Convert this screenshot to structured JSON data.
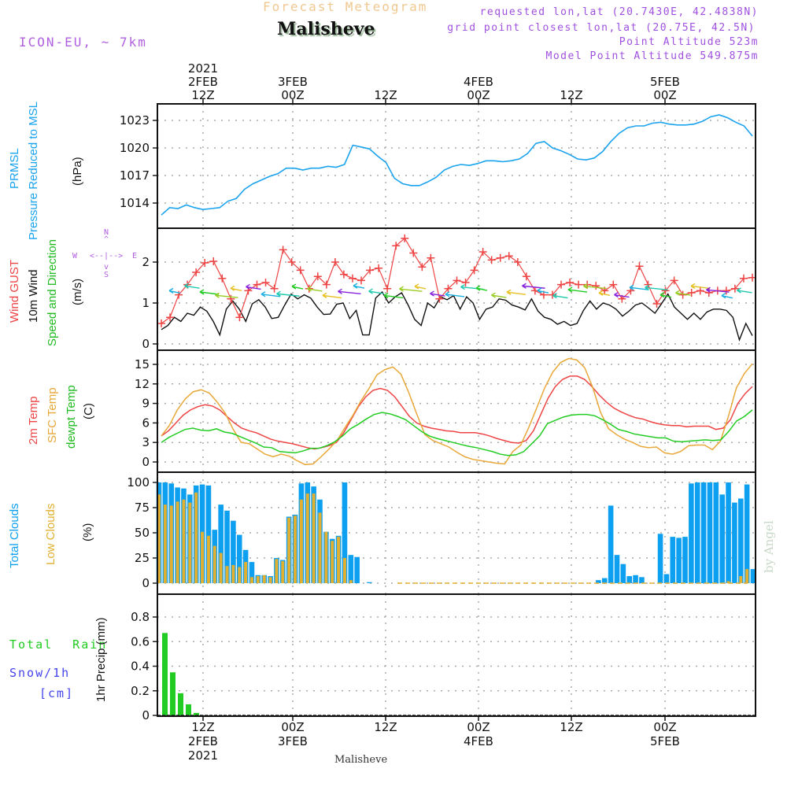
{
  "header": {
    "supertitle": "Forecast Meteogram",
    "location": "Malisheve",
    "model": "ICON-EU, ~ 7km",
    "requested_point": "requested lon,lat (20.7430E, 42.4838N)",
    "grid_point": "grid point closest lon,lat (20.75E, 42.5N)",
    "point_altitude": "Point Altitude 523m",
    "model_altitude": "Model Point Altitude 549.875m",
    "footer_location": "Malisheve",
    "watermark": "by Angel"
  },
  "colors": {
    "pressure": "#1aa3ee",
    "gust": "#ee4444",
    "wind": "#000000",
    "temp2m": "#ee4444",
    "sfc_temp": "#e8a83a",
    "dewpt": "#22cc22",
    "total_clouds": "#0ea0f0",
    "low_clouds": "#e2b030",
    "rain": "#22cc22",
    "snow": "#4444ee",
    "header_purple": "#b060e0",
    "supertitle": "#f0c890"
  },
  "compass": {
    "n": "N",
    "s": "S",
    "e": "E",
    "w": "W",
    "arrows": "<--|-->"
  },
  "chart_data": [
    {
      "type": "line",
      "id": "pressure",
      "title": "PRMSL Pressure Reduced to MSL",
      "title_lines": [
        "PRMSL",
        "Pressure Reduced to MSL"
      ],
      "ylabel": "(hPa)",
      "yticks": [
        1014,
        1017,
        1020,
        1023
      ],
      "ylim": [
        1011.2,
        1024.8
      ],
      "x_hours_start": 0,
      "series": [
        {
          "name": "PRMSL",
          "values": [
            1012.7,
            1013.5,
            1013.4,
            1013.8,
            1013.5,
            1013.3,
            1013.4,
            1013.5,
            1014.2,
            1014.5,
            1015.5,
            1016.1,
            1016.5,
            1016.9,
            1017.2,
            1017.8,
            1017.8,
            1017.6,
            1017.8,
            1017.8,
            1018.0,
            1017.9,
            1018.2,
            1020.3,
            1020.1,
            1019.9,
            1019.1,
            1018.4,
            1016.7,
            1016.1,
            1015.9,
            1015.9,
            1016.3,
            1016.8,
            1017.6,
            1018.0,
            1018.2,
            1018.1,
            1018.3,
            1018.6,
            1018.6,
            1018.5,
            1018.6,
            1018.8,
            1019.4,
            1020.5,
            1020.7,
            1020.0,
            1019.7,
            1019.3,
            1018.8,
            1018.7,
            1018.9,
            1019.6,
            1020.7,
            1021.6,
            1022.2,
            1022.4,
            1022.4,
            1022.7,
            1022.8,
            1022.6,
            1022.5,
            1022.5,
            1022.6,
            1022.9,
            1023.4,
            1023.6,
            1023.3,
            1022.8,
            1022.4,
            1021.3
          ]
        }
      ]
    },
    {
      "type": "line",
      "id": "wind",
      "title": "Wind GUST / 10m Wind Speed and Direction",
      "title_lines": [
        "Wind GUST",
        "10m Wind",
        "Speed and Direction"
      ],
      "ylabel": "(m/s)",
      "yticks": [
        0,
        1,
        2
      ],
      "ylim": [
        -0.15,
        2.8
      ],
      "series": [
        {
          "name": "Wind GUST",
          "values": [
            0.5,
            0.65,
            1.2,
            1.45,
            1.75,
            1.98,
            2.02,
            1.6,
            1.1,
            0.65,
            1.3,
            1.45,
            1.5,
            1.35,
            2.3,
            2.0,
            1.8,
            1.35,
            1.65,
            1.45,
            2.0,
            1.7,
            1.6,
            1.55,
            1.8,
            1.85,
            1.35,
            2.4,
            2.58,
            2.22,
            1.88,
            2.1,
            1.1,
            1.35,
            1.55,
            1.5,
            1.8,
            2.25,
            2.05,
            2.1,
            2.15,
            2.0,
            1.65,
            1.3,
            1.2,
            1.2,
            1.45,
            1.5,
            1.45,
            1.45,
            1.42,
            1.3,
            1.45,
            1.1,
            1.3,
            1.9,
            1.45,
            0.98,
            1.3,
            1.55,
            1.2,
            1.25,
            1.3,
            1.25,
            1.3,
            1.3,
            1.35,
            1.6,
            1.62
          ]
        },
        {
          "name": "10m Wind",
          "values": [
            0.35,
            0.45,
            0.65,
            0.55,
            0.75,
            0.7,
            0.9,
            0.8,
            0.55,
            0.22,
            0.85,
            1.05,
            0.85,
            0.55,
            0.98,
            1.08,
            0.9,
            0.62,
            0.65,
            0.95,
            1.22,
            1.1,
            1.2,
            1.12,
            0.9,
            0.72,
            0.73,
            0.97,
            1.0,
            0.62,
            0.82,
            0.22,
            0.22,
            1.12,
            1.27,
            1.0,
            1.15,
            1.25,
            0.95,
            0.6,
            0.45,
            1.0,
            0.88,
            1.15,
            1.08,
            1.18,
            0.85,
            1.15,
            1.0,
            0.6,
            0.85,
            0.9,
            1.1,
            1.07,
            0.95,
            0.9,
            0.83,
            1.1,
            0.8,
            0.65,
            0.6,
            0.48,
            0.55,
            0.45,
            0.5,
            0.82,
            1.05,
            0.85,
            1.0,
            0.95,
            0.85,
            0.68,
            0.8,
            0.95,
            1.0,
            0.88,
            0.75,
            0.98,
            1.22,
            0.9,
            0.75,
            0.6,
            0.75,
            0.6,
            0.78,
            0.85,
            0.85,
            0.82,
            0.65,
            0.1,
            0.5,
            0.2
          ]
        }
      ],
      "direction_arrows": "colored arrows along the 10m wind line indicating direction, mostly westward/northwestward"
    },
    {
      "type": "line",
      "id": "temperature",
      "title_lines": [
        "2m Temp",
        "SFC Temp",
        "dewpt Temp"
      ],
      "ylabel": "(C)",
      "yticks": [
        0,
        3,
        6,
        9,
        12,
        15
      ],
      "ylim": [
        -2,
        17.3
      ],
      "series": [
        {
          "name": "2m Temp",
          "values": [
            4.0,
            4.8,
            6.0,
            7.2,
            8.0,
            8.5,
            8.8,
            8.6,
            8.0,
            7.0,
            6.0,
            5.2,
            4.8,
            4.5,
            4.0,
            3.5,
            3.2,
            3.0,
            2.8,
            2.5,
            2.2,
            2.0,
            2.2,
            2.5,
            3.0,
            4.5,
            6.5,
            8.5,
            10.0,
            11.0,
            11.3,
            11.0,
            10.0,
            8.5,
            7.0,
            6.0,
            5.5,
            5.2,
            5.0,
            4.8,
            4.7,
            4.5,
            4.5,
            4.5,
            4.3,
            4.0,
            3.6,
            3.3,
            3.0,
            2.9,
            3.3,
            4.8,
            7.3,
            9.8,
            11.6,
            12.7,
            13.2,
            13.2,
            12.7,
            11.6,
            10.3,
            9.2,
            8.3,
            7.7,
            7.2,
            6.8,
            6.6,
            6.2,
            5.9,
            5.7,
            5.6,
            5.6,
            5.4,
            5.5,
            5.5,
            5.5,
            5.0,
            5.2,
            6.5,
            9.0,
            10.5,
            11.6
          ]
        },
        {
          "name": "SFC Temp",
          "values": [
            4.0,
            5.6,
            8.0,
            9.7,
            10.8,
            11.1,
            10.6,
            9.2,
            7.5,
            5.0,
            3.0,
            2.8,
            2.0,
            1.2,
            0.8,
            1.2,
            0.9,
            0.2,
            -0.4,
            -0.3,
            0.8,
            2.0,
            3.3,
            5.3,
            7.2,
            9.4,
            11.3,
            13.4,
            14.2,
            14.6,
            13.5,
            10.6,
            7.3,
            4.2,
            3.3,
            2.8,
            2.3,
            1.5,
            0.8,
            0.4,
            0.2,
            0.0,
            -0.2,
            -0.3,
            1.6,
            2.6,
            5.3,
            8.3,
            11.4,
            13.8,
            15.3,
            15.9,
            15.7,
            14.5,
            11.5,
            7.6,
            5.1,
            4.2,
            3.5,
            3.0,
            2.4,
            2.2,
            2.3,
            1.4,
            1.2,
            1.6,
            2.5,
            2.6,
            2.6,
            1.9,
            3.2,
            7.0,
            11.4,
            13.6,
            15.1
          ]
        },
        {
          "name": "dewpt Temp",
          "values": [
            3.0,
            3.8,
            4.4,
            5.0,
            5.2,
            4.9,
            4.8,
            5.1,
            4.6,
            4.4,
            3.9,
            3.4,
            2.9,
            2.3,
            2.2,
            1.6,
            1.5,
            1.4,
            1.7,
            2.1,
            2.1,
            2.5,
            3.1,
            4.0,
            5.1,
            5.8,
            6.6,
            7.3,
            7.6,
            7.4,
            7.0,
            6.5,
            5.6,
            4.7,
            4.0,
            3.6,
            3.3,
            3.0,
            2.7,
            2.4,
            2.2,
            1.9,
            1.6,
            1.2,
            1.0,
            1.1,
            1.6,
            2.8,
            4.0,
            5.9,
            6.4,
            6.9,
            7.2,
            7.3,
            7.3,
            7.1,
            6.5,
            5.8,
            5.0,
            4.7,
            4.3,
            4.1,
            3.9,
            3.7,
            3.7,
            3.2,
            3.1,
            3.2,
            3.3,
            3.4,
            3.3,
            3.4,
            4.7,
            6.3,
            7.0,
            8.0
          ]
        }
      ]
    },
    {
      "type": "bar",
      "id": "clouds",
      "title_lines": [
        "Total Clouds",
        "Low Clouds"
      ],
      "ylabel": "(%)",
      "yticks": [
        0,
        25,
        50,
        75,
        100
      ],
      "ylim": [
        -7,
        110
      ],
      "series": [
        {
          "name": "Total Clouds",
          "values": [
            100,
            100,
            99,
            95,
            94,
            88,
            97,
            98,
            97,
            53,
            78,
            72,
            62,
            48,
            33,
            21,
            8,
            8,
            7,
            25,
            23,
            66,
            68,
            99,
            100,
            96,
            83,
            51,
            44,
            47,
            100,
            28,
            26,
            0,
            1,
            0,
            0,
            0,
            0,
            0,
            0,
            0,
            0,
            0,
            0,
            0,
            0,
            0,
            0,
            0,
            0,
            0,
            0,
            0,
            0,
            0,
            0,
            0,
            0,
            0,
            0,
            0,
            0,
            0,
            0,
            0,
            0,
            0,
            0,
            0,
            0,
            3,
            5,
            77,
            28,
            19,
            7,
            8,
            6,
            0,
            0,
            49,
            9,
            46,
            45,
            46,
            99,
            100,
            100,
            100,
            100,
            88,
            100,
            80,
            84,
            98,
            14
          ]
        },
        {
          "name": "Low Clouds",
          "values": [
            88,
            78,
            77,
            81,
            83,
            80,
            90,
            51,
            47,
            37,
            30,
            17,
            18,
            16,
            21,
            6,
            7,
            8,
            6,
            24,
            22,
            65,
            67,
            83,
            89,
            89,
            70,
            51,
            42,
            46,
            25,
            3,
            0,
            0,
            0,
            0,
            0,
            0,
            0,
            0,
            0,
            0,
            0,
            0,
            0,
            0,
            0,
            0,
            0,
            0,
            0,
            0,
            0,
            0,
            0,
            0,
            0,
            0,
            0,
            0,
            0,
            0,
            0,
            0,
            0,
            0,
            0,
            0,
            0,
            0,
            0,
            0,
            0,
            0,
            0,
            0,
            0,
            0,
            0,
            0,
            0,
            0,
            0,
            0,
            0,
            0,
            0,
            0,
            0,
            0,
            0,
            0,
            2,
            0,
            7,
            14
          ]
        }
      ]
    },
    {
      "type": "bar",
      "id": "precip",
      "title_lines": [
        "Total Rain",
        "Snow/1h",
        "[cm]"
      ],
      "ylabel": "1hr Precip (mm)",
      "yticks": [
        0,
        0.2,
        0.4,
        0.6,
        0.8
      ],
      "ytick_labels": [
        "0",
        "0.2",
        "0.4",
        "0.6",
        "0.8"
      ],
      "ylim": [
        0,
        0.98
      ],
      "series": [
        {
          "name": "Total Rain",
          "values": [
            0.67,
            0.35,
            0.18,
            0.09,
            0.02
          ]
        },
        {
          "name": "Snow/1h",
          "values": []
        }
      ]
    }
  ],
  "time_axis": {
    "top_ticks": [
      {
        "lines": [
          "2021",
          "2FEB",
          "12Z"
        ]
      },
      {
        "lines": [
          "",
          "3FEB",
          "00Z"
        ]
      },
      {
        "lines": [
          "",
          "",
          "12Z"
        ]
      },
      {
        "lines": [
          "",
          "4FEB",
          "00Z"
        ]
      },
      {
        "lines": [
          "",
          "",
          "12Z"
        ]
      },
      {
        "lines": [
          "",
          "5FEB",
          "00Z"
        ]
      }
    ],
    "bottom_ticks": [
      {
        "lines": [
          "12Z",
          "2FEB",
          "2021"
        ]
      },
      {
        "lines": [
          "00Z",
          "3FEB",
          ""
        ]
      },
      {
        "lines": [
          "12Z",
          "",
          ""
        ]
      },
      {
        "lines": [
          "00Z",
          "4FEB",
          ""
        ]
      },
      {
        "lines": [
          "12Z",
          "",
          ""
        ]
      },
      {
        "lines": [
          "00Z",
          "5FEB",
          ""
        ]
      }
    ]
  }
}
